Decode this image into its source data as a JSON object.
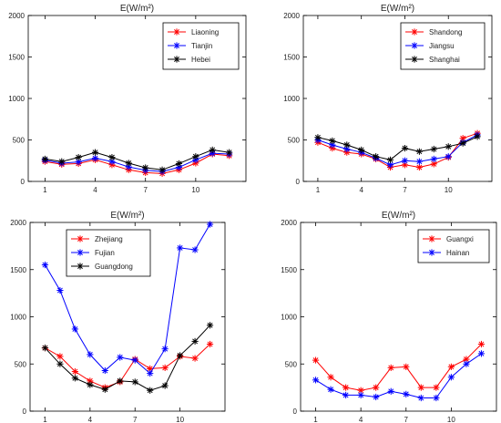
{
  "chart_data": [
    {
      "type": "line",
      "title": "E(W/m²)",
      "xlabel": "",
      "ylabel": "",
      "xlim": [
        0,
        13
      ],
      "ylim": [
        0,
        2000
      ],
      "xticks": [
        1,
        4,
        7,
        10
      ],
      "yticks": [
        0,
        500,
        1000,
        1500,
        2000
      ],
      "legend": "top-right",
      "grid": false,
      "x": [
        1,
        2,
        3,
        4,
        5,
        6,
        7,
        8,
        9,
        10,
        11,
        12
      ],
      "series": [
        {
          "name": "Liaoning",
          "color": "#ff0000",
          "values": [
            240,
            205,
            215,
            260,
            200,
            140,
            105,
            95,
            140,
            220,
            330,
            310
          ]
        },
        {
          "name": "Tianjin",
          "color": "#0000ff",
          "values": [
            255,
            220,
            235,
            280,
            240,
            175,
            135,
            120,
            170,
            260,
            340,
            330
          ]
        },
        {
          "name": "Hebei",
          "color": "#000000",
          "values": [
            270,
            240,
            290,
            350,
            290,
            220,
            165,
            140,
            215,
            300,
            380,
            350
          ]
        }
      ]
    },
    {
      "type": "line",
      "title": "E(W/m²)",
      "xlabel": "",
      "ylabel": "",
      "xlim": [
        0,
        13
      ],
      "ylim": [
        0,
        2000
      ],
      "xticks": [
        1,
        4,
        7,
        10
      ],
      "yticks": [
        0,
        500,
        1000,
        1500,
        2000
      ],
      "legend": "top-right",
      "grid": false,
      "x": [
        1,
        2,
        3,
        4,
        5,
        6,
        7,
        8,
        9,
        10,
        11,
        12
      ],
      "series": [
        {
          "name": "Shandong",
          "color": "#ff0000",
          "values": [
            470,
            400,
            350,
            330,
            270,
            170,
            200,
            170,
            210,
            290,
            520,
            580
          ]
        },
        {
          "name": "Jiangsu",
          "color": "#0000ff",
          "values": [
            500,
            440,
            390,
            350,
            280,
            200,
            250,
            240,
            270,
            300,
            470,
            560
          ]
        },
        {
          "name": "Shanghai",
          "color": "#000000",
          "values": [
            530,
            490,
            440,
            380,
            300,
            260,
            400,
            360,
            390,
            420,
            460,
            540
          ]
        }
      ]
    },
    {
      "type": "line",
      "title": "E(W/m²)",
      "xlabel": "",
      "ylabel": "",
      "xlim": [
        0,
        13
      ],
      "ylim": [
        0,
        2000
      ],
      "xticks": [
        1,
        4,
        7,
        10
      ],
      "yticks": [
        0,
        500,
        1000,
        1500,
        2000
      ],
      "legend": "top-left",
      "grid": false,
      "x": [
        1,
        2,
        3,
        4,
        5,
        6,
        7,
        8,
        9,
        10,
        11,
        12
      ],
      "series": [
        {
          "name": "Zhejiang",
          "color": "#ff0000",
          "values": [
            670,
            580,
            420,
            320,
            250,
            310,
            550,
            450,
            460,
            580,
            560,
            710
          ]
        },
        {
          "name": "Fujian",
          "color": "#0000ff",
          "values": [
            1550,
            1280,
            870,
            600,
            430,
            570,
            540,
            400,
            660,
            1730,
            1710,
            1980
          ]
        },
        {
          "name": "Guangdong",
          "color": "#000000",
          "values": [
            670,
            500,
            350,
            280,
            230,
            320,
            310,
            220,
            270,
            590,
            740,
            910
          ]
        }
      ]
    },
    {
      "type": "line",
      "title": "E(W/m²)",
      "xlabel": "",
      "ylabel": "",
      "xlim": [
        0,
        13
      ],
      "ylim": [
        0,
        2000
      ],
      "xticks": [
        1,
        4,
        7,
        10
      ],
      "yticks": [
        0,
        500,
        1000,
        1500,
        2000
      ],
      "legend": "top-right",
      "grid": false,
      "x": [
        1,
        2,
        3,
        4,
        5,
        6,
        7,
        8,
        9,
        10,
        11,
        12
      ],
      "series": [
        {
          "name": "Guangxi",
          "color": "#ff0000",
          "values": [
            540,
            360,
            250,
            220,
            250,
            460,
            470,
            250,
            250,
            470,
            550,
            710
          ]
        },
        {
          "name": "Hainan",
          "color": "#0000ff",
          "values": [
            330,
            230,
            170,
            170,
            150,
            210,
            180,
            140,
            140,
            360,
            500,
            610
          ]
        }
      ]
    }
  ]
}
